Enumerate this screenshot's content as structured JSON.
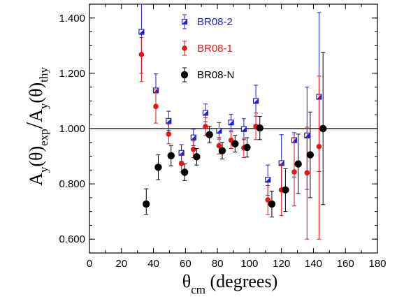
{
  "chart_data": {
    "type": "scatter",
    "title": "",
    "xlabel": {
      "main": "θ",
      "sub": "cm",
      "rest": " (degrees)"
    },
    "ylabel": {
      "part1": "A",
      "sub1": "y",
      "part2": "(θ)",
      "sub2": "exp",
      "slash": "/",
      "part3": "A",
      "sub3": "y",
      "part4": "(θ)",
      "sub4": "thy"
    },
    "xlim": [
      0,
      180
    ],
    "ylim": [
      0.55,
      1.45
    ],
    "xticks": [
      "0",
      "20",
      "40",
      "60",
      "80",
      "100",
      "120",
      "140",
      "160",
      "180"
    ],
    "yticks": [
      "0.600",
      "0.800",
      "1.000",
      "1.200",
      "1.400"
    ],
    "reference_line": 1.0,
    "legend": {
      "placement": "top-center"
    },
    "series": [
      {
        "name": "BR08-2",
        "color": "#2222cc",
        "marker": "half-filled-square",
        "points": [
          {
            "x": 32.5,
            "y": 1.35,
            "lo": 1.2,
            "hi": 1.45
          },
          {
            "x": 41.5,
            "y": 1.138,
            "lo": 1.08,
            "hi": 1.198
          },
          {
            "x": 49.5,
            "y": 1.028,
            "lo": 0.993,
            "hi": 1.063
          },
          {
            "x": 57.5,
            "y": 0.912,
            "lo": 0.882,
            "hi": 0.942
          },
          {
            "x": 65.0,
            "y": 0.968,
            "lo": 0.938,
            "hi": 0.998
          },
          {
            "x": 72.5,
            "y": 1.057,
            "lo": 1.025,
            "hi": 1.089
          },
          {
            "x": 81.0,
            "y": 0.992,
            "lo": 0.962,
            "hi": 1.022
          },
          {
            "x": 88.5,
            "y": 1.022,
            "lo": 0.992,
            "hi": 1.052
          },
          {
            "x": 96.5,
            "y": 0.998,
            "lo": 0.96,
            "hi": 1.036
          },
          {
            "x": 104.0,
            "y": 1.1,
            "lo": 1.045,
            "hi": 1.157
          },
          {
            "x": 111.5,
            "y": 0.815,
            "lo": 0.758,
            "hi": 0.868
          },
          {
            "x": 120.0,
            "y": 0.875,
            "lo": 0.775,
            "hi": 0.978
          },
          {
            "x": 128.0,
            "y": 0.958,
            "lo": 0.825,
            "hi": 0.985
          },
          {
            "x": 136.0,
            "y": 0.975,
            "lo": 0.78,
            "hi": 1.15
          },
          {
            "x": 143.5,
            "y": 1.115,
            "lo": 0.845,
            "hi": 1.42
          }
        ]
      },
      {
        "name": "BR08-1",
        "color": "#e01818",
        "marker": "circle",
        "points": [
          {
            "x": 32.5,
            "y": 1.268,
            "lo": 1.17,
            "hi": 1.33
          },
          {
            "x": 41.5,
            "y": 1.08,
            "lo": 1.02,
            "hi": 1.14
          },
          {
            "x": 49.5,
            "y": 0.98,
            "lo": 0.945,
            "hi": 1.015
          },
          {
            "x": 57.5,
            "y": 0.873,
            "lo": 0.843,
            "hi": 0.903
          },
          {
            "x": 65.0,
            "y": 0.925,
            "lo": 0.895,
            "hi": 0.955
          },
          {
            "x": 72.5,
            "y": 1.007,
            "lo": 0.975,
            "hi": 1.039
          },
          {
            "x": 81.0,
            "y": 0.938,
            "lo": 0.908,
            "hi": 0.968
          },
          {
            "x": 88.5,
            "y": 0.958,
            "lo": 0.928,
            "hi": 0.988
          },
          {
            "x": 96.5,
            "y": 0.93,
            "lo": 0.895,
            "hi": 0.965
          },
          {
            "x": 104.0,
            "y": 1.008,
            "lo": 0.96,
            "hi": 1.056
          },
          {
            "x": 111.5,
            "y": 0.742,
            "lo": 0.69,
            "hi": 0.794
          },
          {
            "x": 120.0,
            "y": 0.778,
            "lo": 0.685,
            "hi": 0.871
          },
          {
            "x": 128.0,
            "y": 0.843,
            "lo": 0.72,
            "hi": 0.966
          },
          {
            "x": 136.0,
            "y": 0.84,
            "lo": 0.6,
            "hi": 1.005
          },
          {
            "x": 143.5,
            "y": 0.935,
            "lo": 0.6,
            "hi": 1.19
          }
        ]
      },
      {
        "name": "BR08-N",
        "color": "#000000",
        "marker": "circle-large",
        "points": [
          {
            "x": 35.5,
            "y": 0.727,
            "lo": 0.69,
            "hi": 0.782
          },
          {
            "x": 43.0,
            "y": 0.86,
            "lo": 0.815,
            "hi": 0.905
          },
          {
            "x": 51.0,
            "y": 0.902,
            "lo": 0.865,
            "hi": 0.939
          },
          {
            "x": 59.5,
            "y": 0.842,
            "lo": 0.812,
            "hi": 0.872
          },
          {
            "x": 67.0,
            "y": 0.898,
            "lo": 0.868,
            "hi": 0.928
          },
          {
            "x": 75.0,
            "y": 0.978,
            "lo": 0.948,
            "hi": 1.008
          },
          {
            "x": 83.0,
            "y": 0.92,
            "lo": 0.89,
            "hi": 0.95
          },
          {
            "x": 91.0,
            "y": 0.945,
            "lo": 0.915,
            "hi": 0.975
          },
          {
            "x": 98.5,
            "y": 0.932,
            "lo": 0.897,
            "hi": 0.967
          },
          {
            "x": 106.5,
            "y": 1.002,
            "lo": 0.96,
            "hi": 1.044
          },
          {
            "x": 114.0,
            "y": 0.727,
            "lo": 0.68,
            "hi": 0.774
          },
          {
            "x": 122.5,
            "y": 0.778,
            "lo": 0.7,
            "hi": 0.855
          },
          {
            "x": 130.5,
            "y": 0.872,
            "lo": 0.765,
            "hi": 0.98
          },
          {
            "x": 138.0,
            "y": 0.905,
            "lo": 0.75,
            "hi": 1.06
          },
          {
            "x": 146.0,
            "y": 1.0,
            "lo": 0.725,
            "hi": 1.275
          }
        ]
      }
    ]
  }
}
